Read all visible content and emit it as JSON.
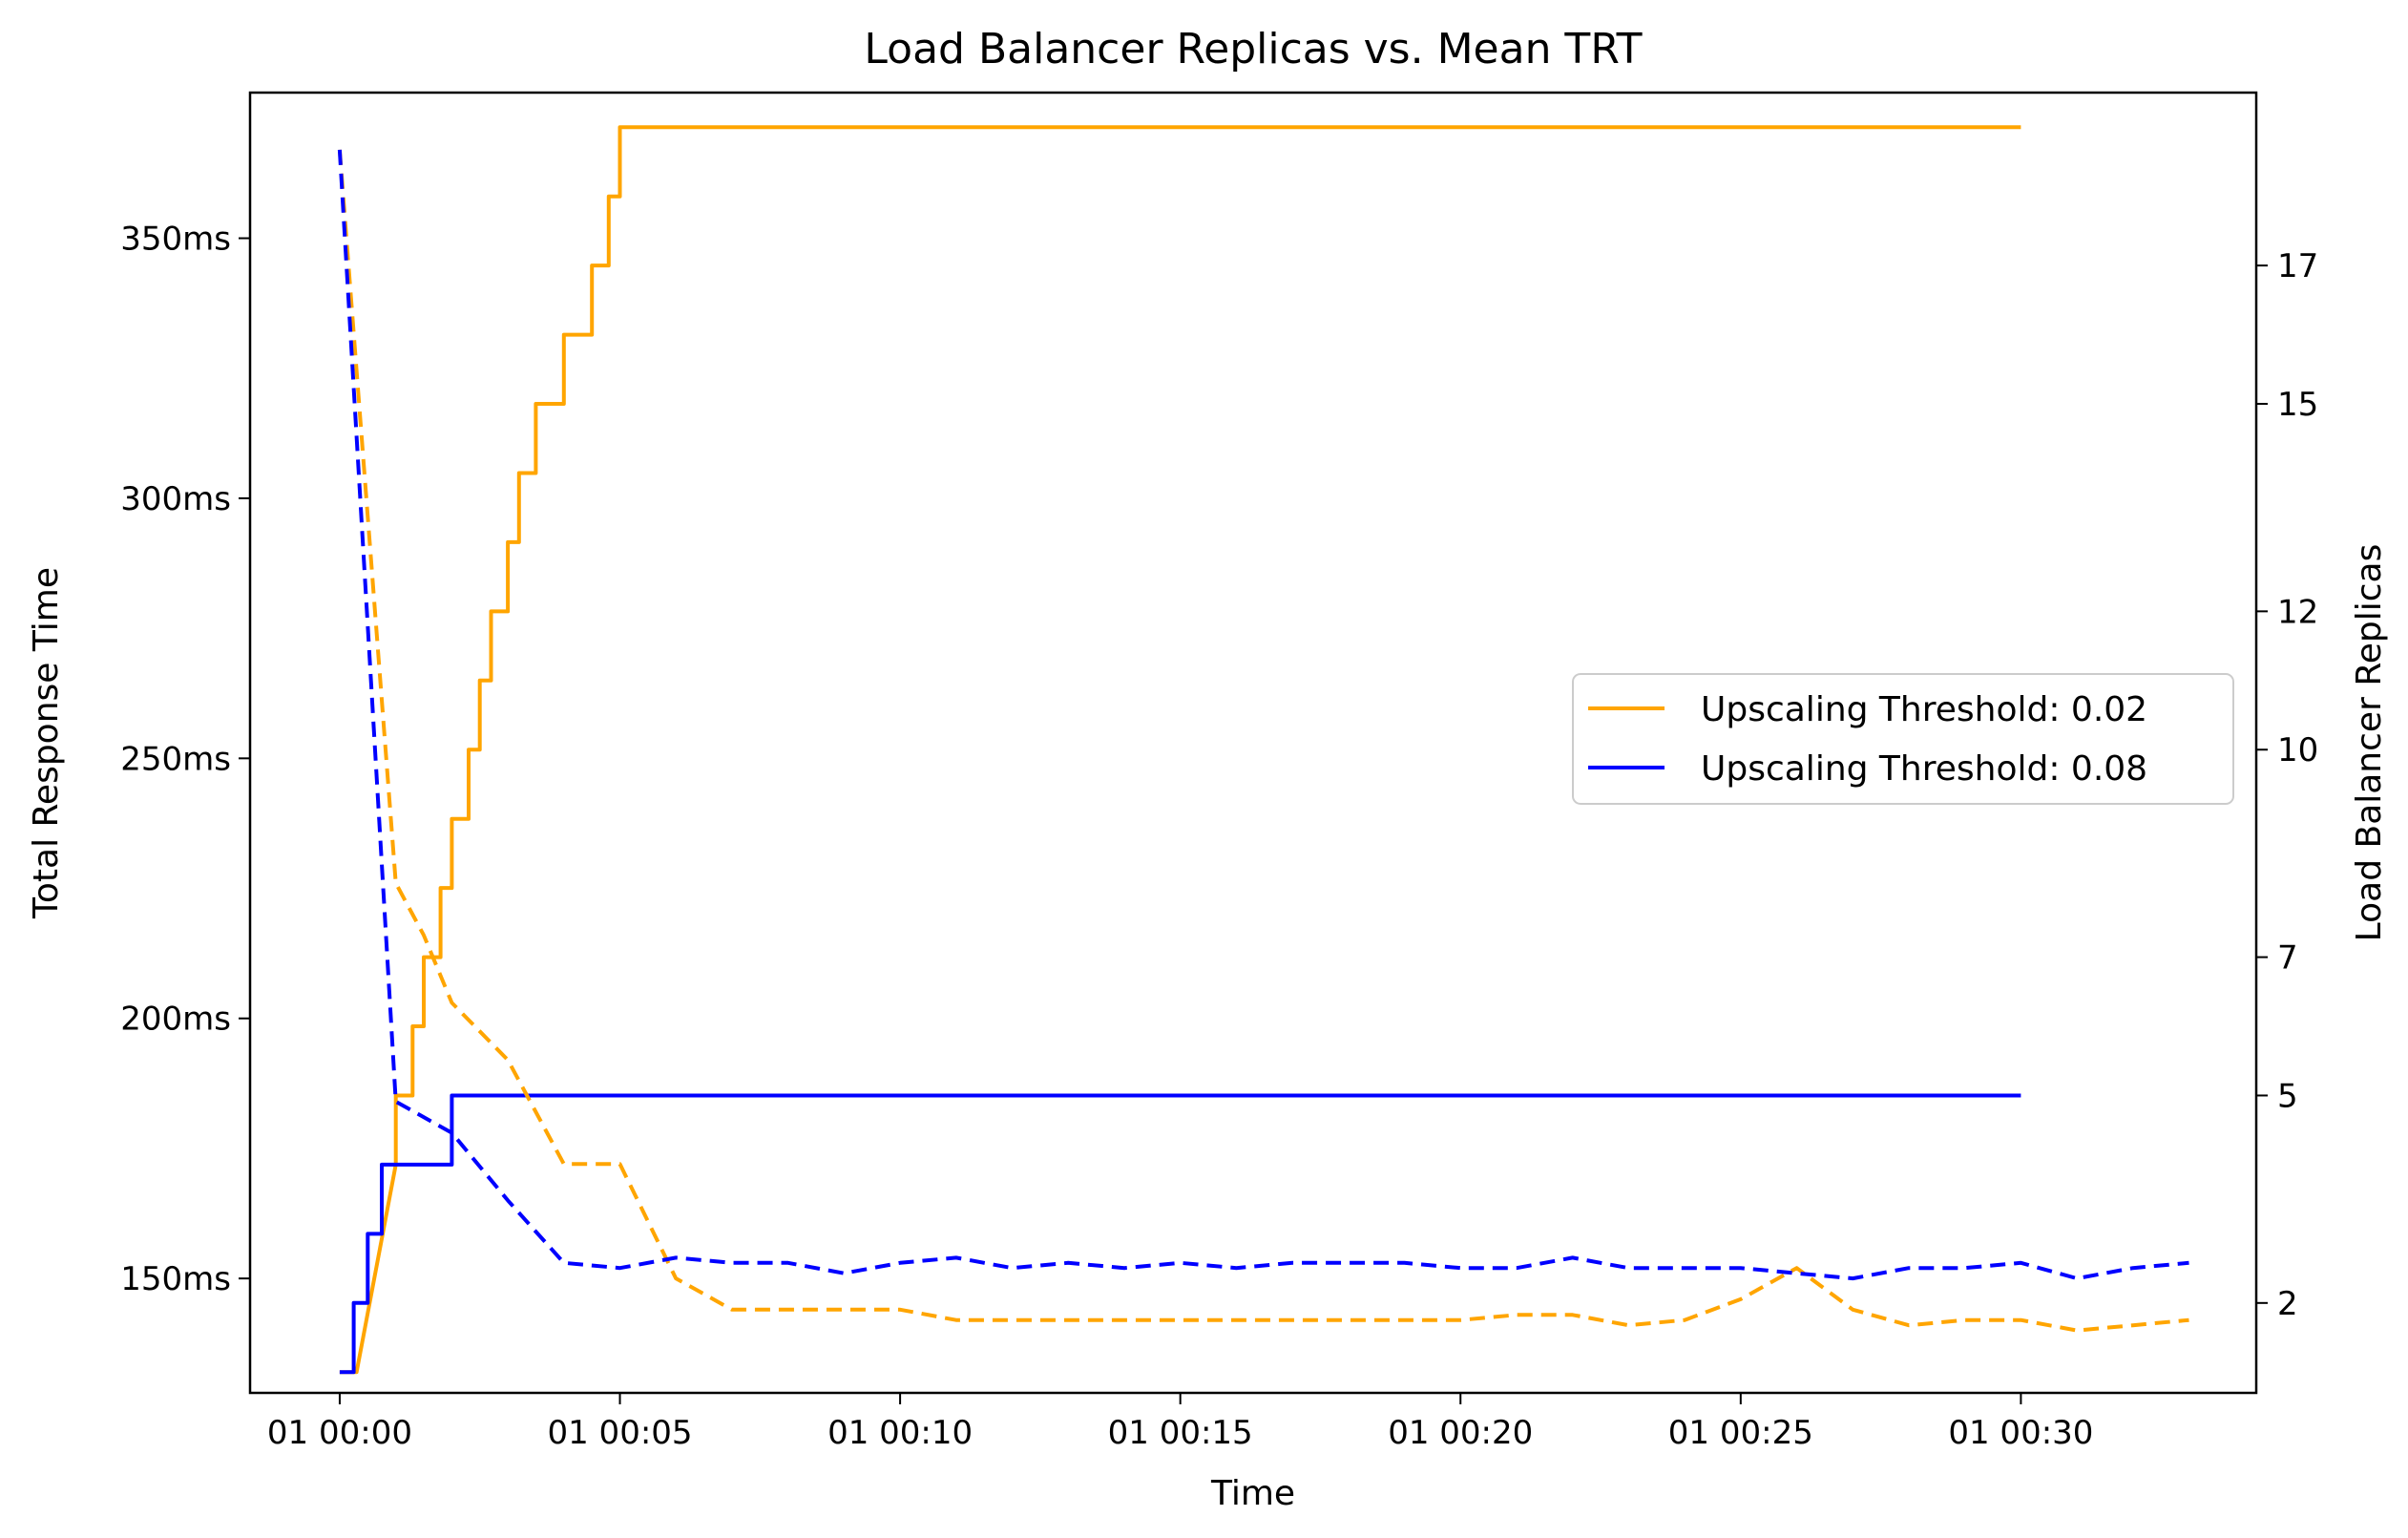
{
  "chart_data": {
    "type": "line",
    "title": "Load Balancer Replicas vs. Mean TRT",
    "xlabel": "Time",
    "ylabel_left": "Total Response Time",
    "ylabel_right": "Load Balancer Replicas",
    "x_unit": "minutes after 01 00:00",
    "xlim": [
      -1.6,
      34.2
    ],
    "ylim_left": [
      128,
      378
    ],
    "ylim_right": [
      0.7,
      19.5
    ],
    "x_ticks": [
      0,
      5,
      10,
      15,
      20,
      25,
      30
    ],
    "x_tick_labels": [
      "01 00:00",
      "01 00:05",
      "01 00:10",
      "01 00:15",
      "01 00:20",
      "01 00:25",
      "01 00:30"
    ],
    "y_left_ticks": [
      150,
      200,
      250,
      300,
      350
    ],
    "y_left_tick_labels": [
      "150ms",
      "200ms",
      "250ms",
      "300ms",
      "350ms"
    ],
    "y_right_ticks": [
      2,
      5,
      7,
      10,
      12,
      15,
      17
    ],
    "y_right_tick_labels": [
      "2",
      "5",
      "7",
      "10",
      "12",
      "15",
      "17"
    ],
    "legend": {
      "position": "center-right",
      "entries": [
        "Upscaling Threshold: 0.02",
        "Upscaling Threshold: 0.08"
      ]
    },
    "series": [
      {
        "name": "Upscaling Threshold: 0.02",
        "color": "#ffa500",
        "style": "solid",
        "axis": "right",
        "measure": "Load Balancer Replicas",
        "x": [
          0,
          0.3,
          1.0,
          1.0,
          1.3,
          1.3,
          1.5,
          1.5,
          1.8,
          1.8,
          2.0,
          2.0,
          2.3,
          2.3,
          2.5,
          2.5,
          2.7,
          2.7,
          3.0,
          3.0,
          3.2,
          3.2,
          3.5,
          3.5,
          4.0,
          4.0,
          4.5,
          4.5,
          4.8,
          4.8,
          5.0,
          5.0,
          30.0
        ],
        "y": [
          1,
          1,
          4,
          5,
          5,
          6,
          6,
          7,
          7,
          8,
          8,
          9,
          9,
          10,
          10,
          11,
          11,
          12,
          12,
          13,
          13,
          14,
          14,
          15,
          15,
          16,
          16,
          17,
          17,
          18,
          18,
          19,
          19
        ]
      },
      {
        "name": "Upscaling Threshold: 0.08",
        "color": "#0000ff",
        "style": "solid",
        "axis": "right",
        "measure": "Load Balancer Replicas",
        "x": [
          0,
          0.25,
          0.25,
          0.5,
          0.5,
          0.75,
          0.75,
          2.0,
          2.0,
          30.0
        ],
        "y": [
          1,
          1,
          2,
          2,
          3,
          3,
          4,
          4,
          5,
          5
        ]
      },
      {
        "name": "Upscaling Threshold: 0.02",
        "color": "#ffa500",
        "style": "dashed",
        "axis": "left",
        "measure": "Total Response Time",
        "x": [
          0,
          1,
          1.5,
          2,
          3,
          4,
          5,
          6,
          7,
          8,
          9,
          10,
          11,
          12,
          13,
          14,
          15,
          16,
          17,
          18,
          19,
          20,
          21,
          22,
          23,
          24,
          25,
          26,
          27,
          28,
          29,
          30,
          31,
          32,
          33
        ],
        "y": [
          367,
          226,
          216,
          203,
          192,
          172,
          172,
          150,
          144,
          144,
          144,
          144,
          142,
          142,
          142,
          142,
          142,
          142,
          142,
          142,
          142,
          142,
          143,
          143,
          141,
          142,
          146,
          152,
          144,
          141,
          142,
          142,
          140,
          141,
          142
        ]
      },
      {
        "name": "Upscaling Threshold: 0.08",
        "color": "#0000ff",
        "style": "dashed",
        "axis": "left",
        "measure": "Total Response Time",
        "x": [
          0,
          1,
          2,
          3,
          4,
          5,
          6,
          7,
          8,
          9,
          10,
          11,
          12,
          13,
          14,
          15,
          16,
          17,
          18,
          19,
          20,
          21,
          22,
          23,
          24,
          25,
          26,
          27,
          28,
          29,
          30,
          31,
          32,
          33
        ],
        "y": [
          367,
          184,
          178,
          165,
          153,
          152,
          154,
          153,
          153,
          151,
          153,
          154,
          152,
          153,
          152,
          153,
          152,
          153,
          153,
          153,
          152,
          152,
          154,
          152,
          152,
          152,
          151,
          150,
          152,
          152,
          153,
          150,
          152,
          153
        ]
      }
    ]
  }
}
